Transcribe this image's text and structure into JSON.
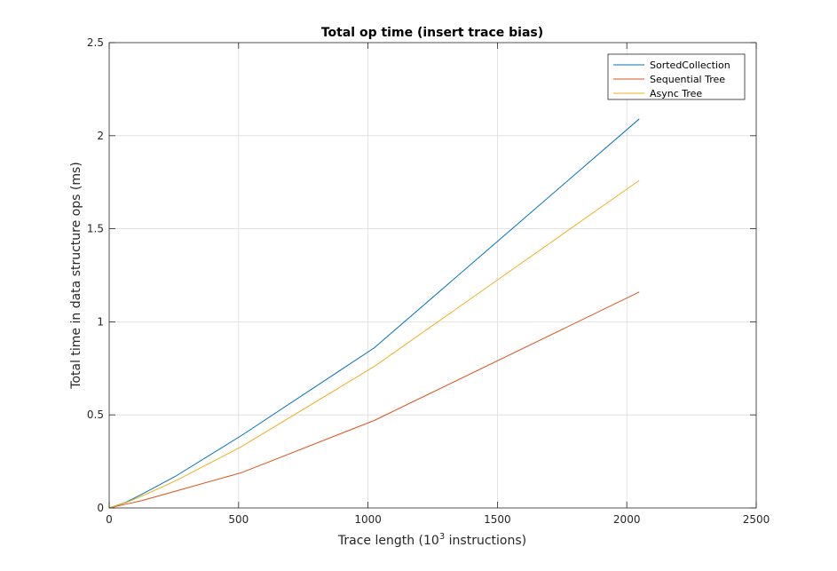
{
  "chart_data": {
    "type": "line",
    "title": "Total op time (insert trace bias)",
    "xlabel_prefix": "Trace length (10",
    "xlabel_exp": "3",
    "xlabel_suffix": " instructions)",
    "ylabel": "Total time in data structure ops (ms)",
    "xlim": [
      0,
      2500
    ],
    "ylim": [
      0,
      2.5
    ],
    "xticks": [
      0,
      500,
      1000,
      1500,
      2000,
      2500
    ],
    "xtick_labels": [
      "0",
      "500",
      "1000",
      "1500",
      "2000",
      "2500"
    ],
    "yticks": [
      0,
      0.5,
      1,
      1.5,
      2,
      2.5
    ],
    "ytick_labels": [
      "0",
      "0.5",
      "1",
      "1.5",
      "2",
      "2.5"
    ],
    "grid": true,
    "legend_position": "top-right",
    "x": [
      0,
      32,
      64,
      128,
      256,
      512,
      1024,
      2048
    ],
    "series": [
      {
        "name": "SortedCollection",
        "color": "#0072bd",
        "values": [
          0,
          0.015,
          0.03,
          0.075,
          0.17,
          0.39,
          0.86,
          2.09
        ]
      },
      {
        "name": "Sequential Tree",
        "color": "#d95319",
        "values": [
          0,
          0.01,
          0.02,
          0.04,
          0.09,
          0.19,
          0.47,
          1.16
        ]
      },
      {
        "name": "Async Tree",
        "color": "#edb120",
        "values": [
          0,
          0.014,
          0.028,
          0.065,
          0.145,
          0.33,
          0.76,
          1.76
        ]
      }
    ]
  }
}
